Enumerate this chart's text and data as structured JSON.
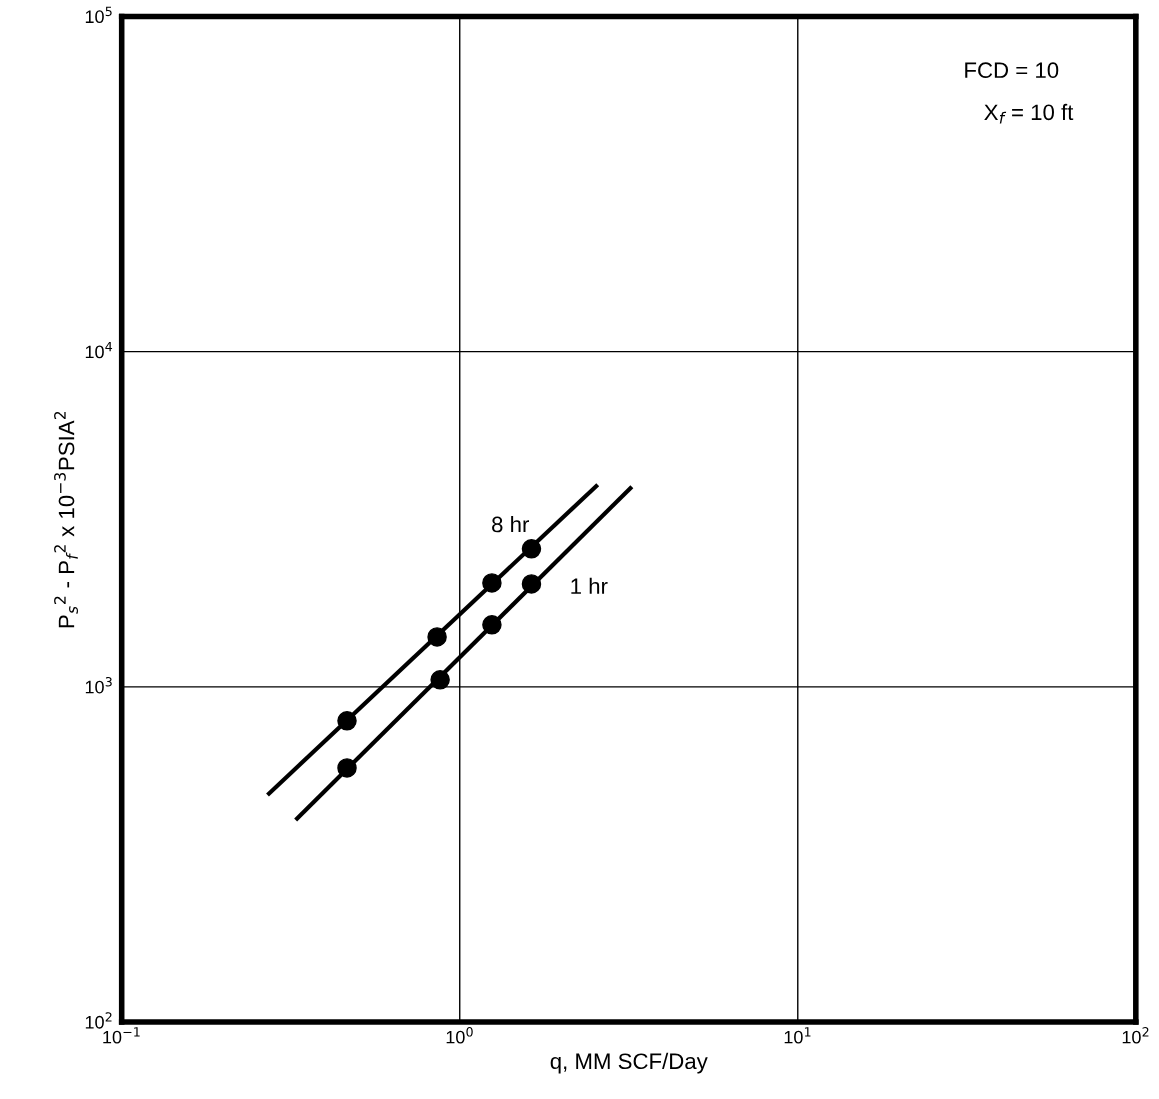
{
  "chart_data": {
    "type": "scatter",
    "xlabel": "q, MM SCF/Day",
    "ylabel": "P$_{s}$$^{2}$ - P$_{f}$$^{2}$ x 10$^{−3}$PSIA$^{2}$",
    "log": "xy",
    "grid": true,
    "xlim": [
      0.1,
      100
    ],
    "ylim": [
      100,
      100000
    ],
    "xticks": [
      {
        "value": 0.1,
        "label": "10$^{−1}$"
      },
      {
        "value": 1,
        "label": "10$^{0}$"
      },
      {
        "value": 10,
        "label": "10$^{1}$"
      },
      {
        "value": 100,
        "label": "10$^{2}$"
      }
    ],
    "yticks": [
      {
        "value": 100,
        "label": "10$^{2}$"
      },
      {
        "value": 1000,
        "label": "10$^{3}$"
      },
      {
        "value": 10000,
        "label": "10$^{4}$"
      },
      {
        "value": 100000,
        "label": "10$^{5}$"
      }
    ],
    "series": [
      {
        "type": "line",
        "name": "8 hr",
        "color": "#000000",
        "marker": "none",
        "x": [
          0.27,
          2.56
        ],
        "values": [
          476,
          4010
        ]
      },
      {
        "type": "line",
        "name": "1 hr",
        "color": "#000000",
        "marker": "none",
        "x": [
          0.327,
          3.23
        ],
        "values": [
          401,
          3955
        ]
      },
      {
        "color": "#000000",
        "marker": "circle",
        "x": [
          0.464,
          0.857,
          1.245,
          1.63
        ],
        "values": [
          792,
          1409,
          2042,
          2581
        ]
      },
      {
        "color": "#000000",
        "marker": "circle",
        "x": [
          0.464,
          0.875,
          1.245,
          1.63
        ],
        "values": [
          573,
          1050,
          1531,
          2028
        ]
      }
    ],
    "annotations": [
      "FCD = 10",
      "X$_{f}$ = 10 ft"
    ]
  }
}
